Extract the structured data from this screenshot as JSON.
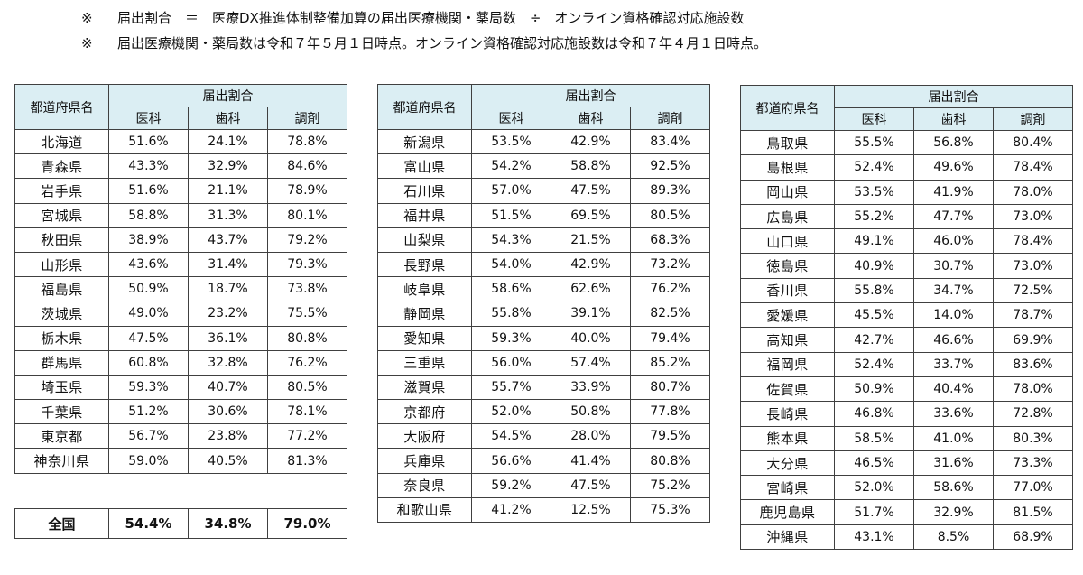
{
  "notes": [
    {
      "mark": "※",
      "text": "届出割合　＝　医療DX推進体制整備加算の届出医療機関・薬局数　÷　オンライン資格確認対応施設数"
    },
    {
      "mark": "※",
      "text": "届出医療機関・薬局数は令和７年５月１日時点。オンライン資格確認対応施設数は令和７年４月１日時点。"
    }
  ],
  "table_headers": {
    "name": "都道府県名",
    "group": "届出割合",
    "medical": "医科",
    "dental": "歯科",
    "pharmacy": "調剤"
  },
  "tables": [
    {
      "rows": [
        {
          "name": "北海道",
          "medical": "51.6%",
          "dental": "24.1%",
          "pharmacy": "78.8%"
        },
        {
          "name": "青森県",
          "medical": "43.3%",
          "dental": "32.9%",
          "pharmacy": "84.6%"
        },
        {
          "name": "岩手県",
          "medical": "51.6%",
          "dental": "21.1%",
          "pharmacy": "78.9%"
        },
        {
          "name": "宮城県",
          "medical": "58.8%",
          "dental": "31.3%",
          "pharmacy": "80.1%"
        },
        {
          "name": "秋田県",
          "medical": "38.9%",
          "dental": "43.7%",
          "pharmacy": "79.2%"
        },
        {
          "name": "山形県",
          "medical": "43.6%",
          "dental": "31.4%",
          "pharmacy": "79.3%"
        },
        {
          "name": "福島県",
          "medical": "50.9%",
          "dental": "18.7%",
          "pharmacy": "73.8%"
        },
        {
          "name": "茨城県",
          "medical": "49.0%",
          "dental": "23.2%",
          "pharmacy": "75.5%"
        },
        {
          "name": "栃木県",
          "medical": "47.5%",
          "dental": "36.1%",
          "pharmacy": "80.8%"
        },
        {
          "name": "群馬県",
          "medical": "60.8%",
          "dental": "32.8%",
          "pharmacy": "76.2%"
        },
        {
          "name": "埼玉県",
          "medical": "59.3%",
          "dental": "40.7%",
          "pharmacy": "80.5%"
        },
        {
          "name": "千葉県",
          "medical": "51.2%",
          "dental": "30.6%",
          "pharmacy": "78.1%"
        },
        {
          "name": "東京都",
          "medical": "56.7%",
          "dental": "23.8%",
          "pharmacy": "77.2%"
        },
        {
          "name": "神奈川県",
          "medical": "59.0%",
          "dental": "40.5%",
          "pharmacy": "81.3%"
        }
      ]
    },
    {
      "rows": [
        {
          "name": "新潟県",
          "medical": "53.5%",
          "dental": "42.9%",
          "pharmacy": "83.4%"
        },
        {
          "name": "富山県",
          "medical": "54.2%",
          "dental": "58.8%",
          "pharmacy": "92.5%"
        },
        {
          "name": "石川県",
          "medical": "57.0%",
          "dental": "47.5%",
          "pharmacy": "89.3%"
        },
        {
          "name": "福井県",
          "medical": "51.5%",
          "dental": "69.5%",
          "pharmacy": "80.5%"
        },
        {
          "name": "山梨県",
          "medical": "54.3%",
          "dental": "21.5%",
          "pharmacy": "68.3%"
        },
        {
          "name": "長野県",
          "medical": "54.0%",
          "dental": "42.9%",
          "pharmacy": "73.2%"
        },
        {
          "name": "岐阜県",
          "medical": "58.6%",
          "dental": "62.6%",
          "pharmacy": "76.2%"
        },
        {
          "name": "静岡県",
          "medical": "55.8%",
          "dental": "39.1%",
          "pharmacy": "82.5%"
        },
        {
          "name": "愛知県",
          "medical": "59.3%",
          "dental": "40.0%",
          "pharmacy": "79.4%"
        },
        {
          "name": "三重県",
          "medical": "56.0%",
          "dental": "57.4%",
          "pharmacy": "85.2%"
        },
        {
          "name": "滋賀県",
          "medical": "55.7%",
          "dental": "33.9%",
          "pharmacy": "80.7%"
        },
        {
          "name": "京都府",
          "medical": "52.0%",
          "dental": "50.8%",
          "pharmacy": "77.8%"
        },
        {
          "name": "大阪府",
          "medical": "54.5%",
          "dental": "28.0%",
          "pharmacy": "79.5%"
        },
        {
          "name": "兵庫県",
          "medical": "56.6%",
          "dental": "41.4%",
          "pharmacy": "80.8%"
        },
        {
          "name": "奈良県",
          "medical": "59.2%",
          "dental": "47.5%",
          "pharmacy": "75.2%"
        },
        {
          "name": "和歌山県",
          "medical": "41.2%",
          "dental": "12.5%",
          "pharmacy": "75.3%"
        }
      ]
    },
    {
      "rows": [
        {
          "name": "鳥取県",
          "medical": "55.5%",
          "dental": "56.8%",
          "pharmacy": "80.4%"
        },
        {
          "name": "島根県",
          "medical": "52.4%",
          "dental": "49.6%",
          "pharmacy": "78.4%"
        },
        {
          "name": "岡山県",
          "medical": "53.5%",
          "dental": "41.9%",
          "pharmacy": "78.0%"
        },
        {
          "name": "広島県",
          "medical": "55.2%",
          "dental": "47.7%",
          "pharmacy": "73.0%"
        },
        {
          "name": "山口県",
          "medical": "49.1%",
          "dental": "46.0%",
          "pharmacy": "78.4%"
        },
        {
          "name": "徳島県",
          "medical": "40.9%",
          "dental": "30.7%",
          "pharmacy": "73.0%"
        },
        {
          "name": "香川県",
          "medical": "55.8%",
          "dental": "34.7%",
          "pharmacy": "72.5%"
        },
        {
          "name": "愛媛県",
          "medical": "45.5%",
          "dental": "14.0%",
          "pharmacy": "78.7%"
        },
        {
          "name": "高知県",
          "medical": "42.7%",
          "dental": "46.6%",
          "pharmacy": "69.9%"
        },
        {
          "name": "福岡県",
          "medical": "52.4%",
          "dental": "33.7%",
          "pharmacy": "83.6%"
        },
        {
          "name": "佐賀県",
          "medical": "50.9%",
          "dental": "40.4%",
          "pharmacy": "78.0%"
        },
        {
          "name": "長崎県",
          "medical": "46.8%",
          "dental": "33.6%",
          "pharmacy": "72.8%"
        },
        {
          "name": "熊本県",
          "medical": "58.5%",
          "dental": "41.0%",
          "pharmacy": "80.3%"
        },
        {
          "name": "大分県",
          "medical": "46.5%",
          "dental": "31.6%",
          "pharmacy": "73.3%"
        },
        {
          "name": "宮崎県",
          "medical": "52.0%",
          "dental": "58.6%",
          "pharmacy": "77.0%"
        },
        {
          "name": "鹿児島県",
          "medical": "51.7%",
          "dental": "32.9%",
          "pharmacy": "81.5%"
        },
        {
          "name": "沖縄県",
          "medical": "43.1%",
          "dental": "8.5%",
          "pharmacy": "68.9%"
        }
      ]
    }
  ],
  "national_total": {
    "label": "全国",
    "medical": "54.4%",
    "dental": "34.8%",
    "pharmacy": "79.0%"
  }
}
